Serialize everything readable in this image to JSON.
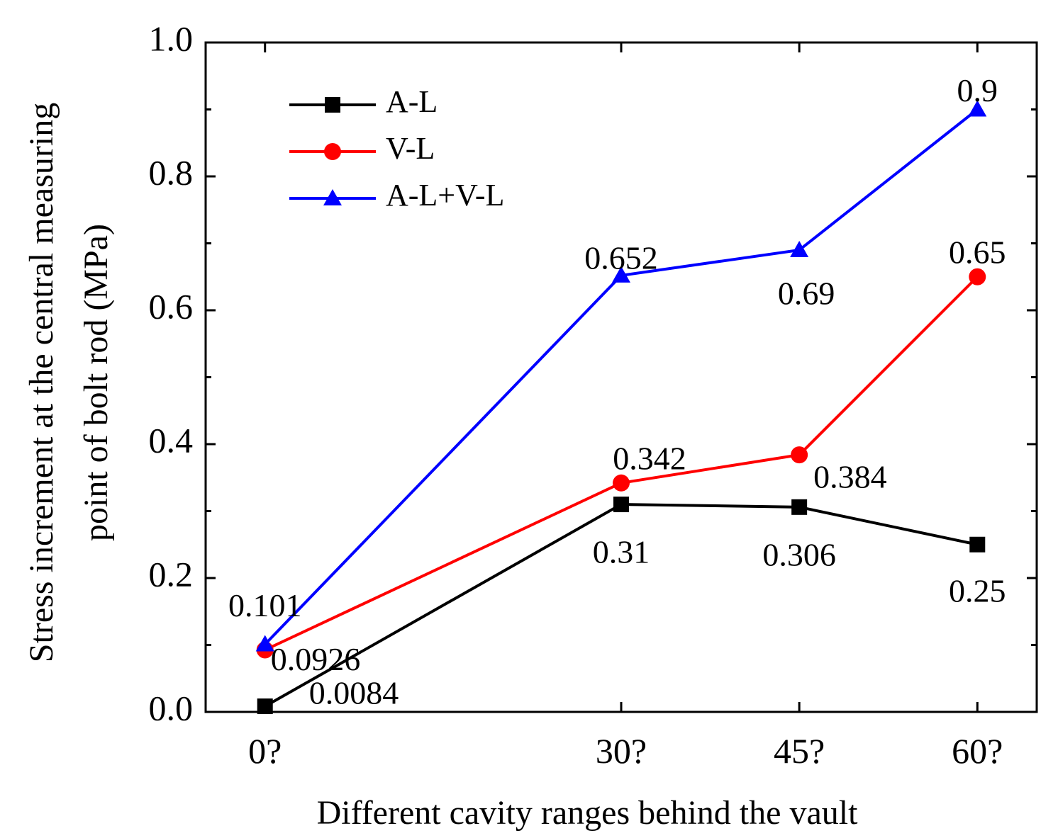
{
  "chart_data": {
    "type": "line",
    "title": "",
    "categories": [
      "0?",
      "30?",
      "45?",
      "60?"
    ],
    "x": [
      0,
      30,
      45,
      60
    ],
    "xlim": [
      -5,
      65
    ],
    "ylim": [
      0,
      1.0
    ],
    "yticks": [
      0.0,
      0.2,
      0.4,
      0.6,
      0.8,
      1.0
    ],
    "ytick_labels": [
      "0.0",
      "0.2",
      "0.4",
      "0.6",
      "0.8",
      "1.0"
    ],
    "xlabel": "Different cavity ranges behind the vault",
    "ylabel_line1": "Stress increment at the central measuring",
    "ylabel_line2": "point of bolt rod (MPa)",
    "legend_position": "top-left",
    "grid": false,
    "series": [
      {
        "name": "A-L",
        "color": "#000000",
        "marker": "square",
        "values": [
          0.0084,
          0.31,
          0.306,
          0.25
        ],
        "labels": [
          "0.0084",
          "0.31",
          "0.306",
          "0.25"
        ]
      },
      {
        "name": "V-L",
        "color": "#ff0000",
        "marker": "circle",
        "values": [
          0.0926,
          0.342,
          0.384,
          0.65
        ],
        "labels": [
          "0.0926",
          "0.342",
          "0.384",
          "0.65"
        ]
      },
      {
        "name": "A-L+V-L",
        "color": "#0000ff",
        "marker": "triangle",
        "values": [
          0.101,
          0.652,
          0.69,
          0.9
        ],
        "labels": [
          "0.101",
          "0.652",
          "0.69",
          "0.9"
        ]
      }
    ]
  }
}
